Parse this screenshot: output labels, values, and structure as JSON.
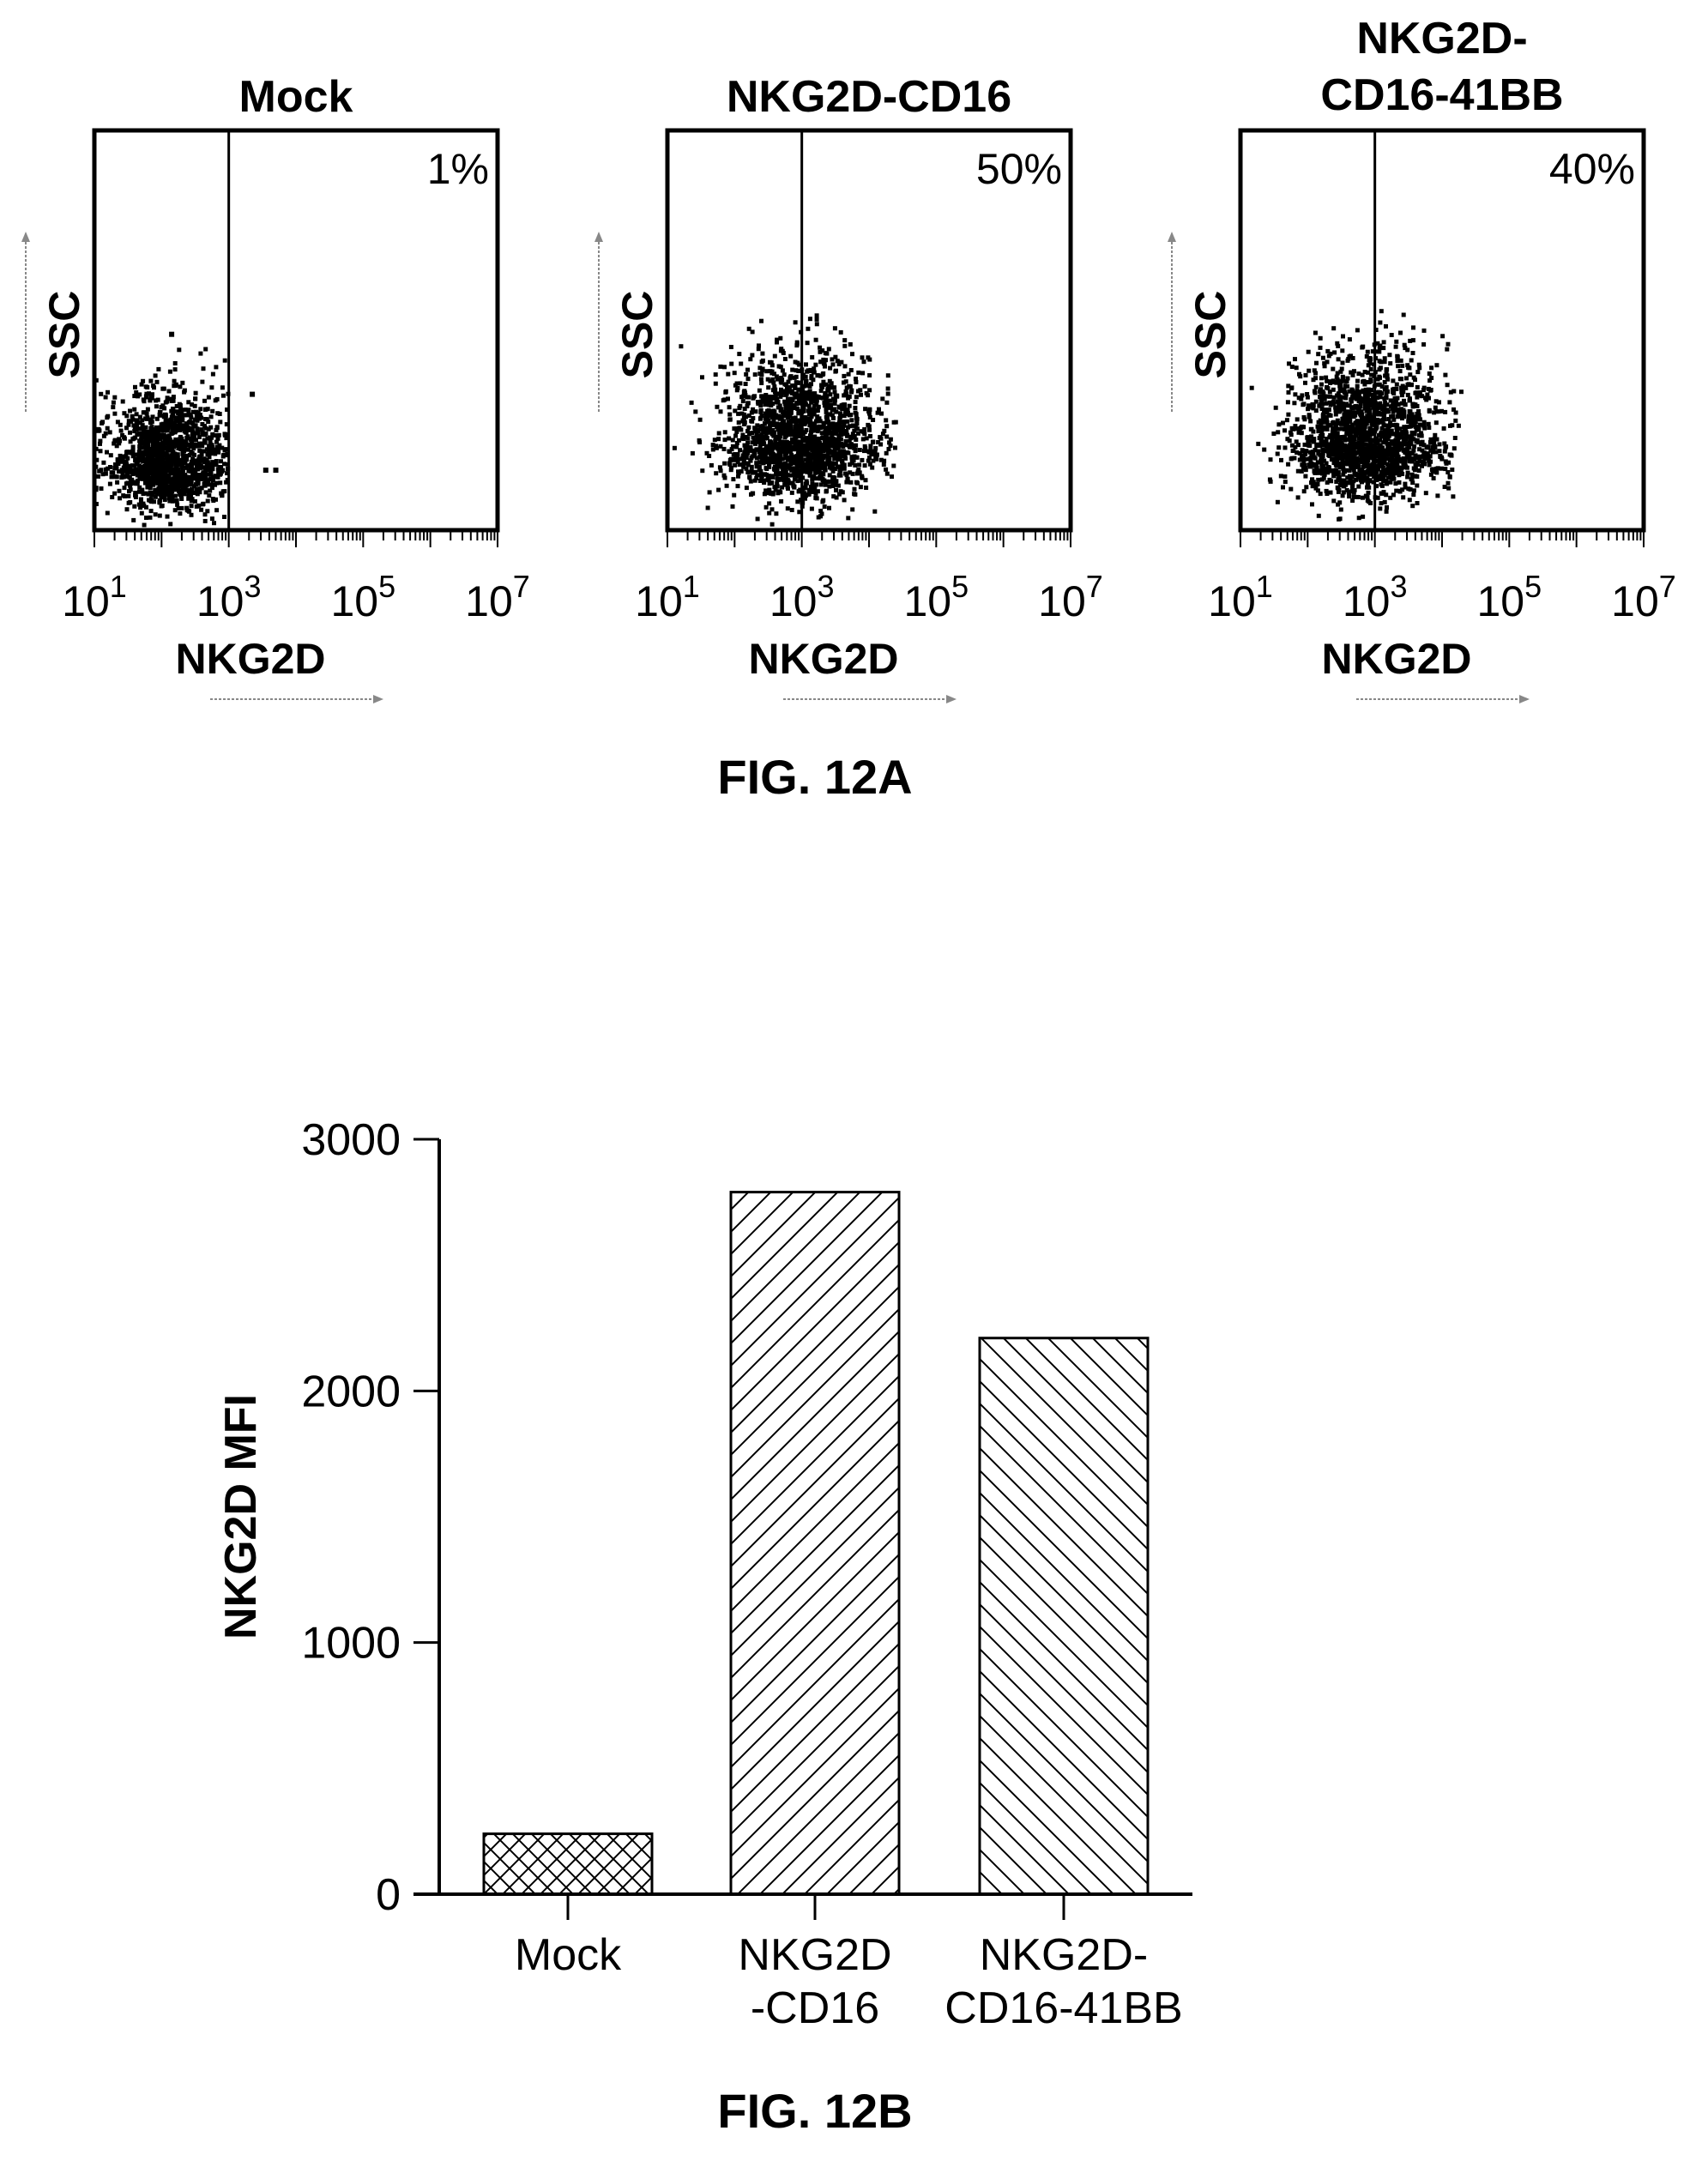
{
  "figure_a_label": "FIG. 12A",
  "figure_b_label": "FIG. 12B",
  "chart_data": [
    {
      "type": "scatter",
      "title": "Mock",
      "xlabel": "NKG2D",
      "ylabel": "SSC",
      "xscale": "log",
      "xlim": [
        10,
        10000000
      ],
      "x_ticks": [
        {
          "base": "10",
          "exp": "1"
        },
        {
          "base": "10",
          "exp": "3"
        },
        {
          "base": "10",
          "exp": "5"
        },
        {
          "base": "10",
          "exp": "7"
        }
      ],
      "gate_x": 1000,
      "gate_percent": "1%",
      "population": {
        "center_log_x": 2.1,
        "spread_log_x": 0.45,
        "center_y": 0.17,
        "spread_y": 0.09,
        "max_log_x": 3.0,
        "max_y": 0.52,
        "count": 1400
      },
      "outliers": [
        [
          3.35,
          0.34
        ],
        [
          3.55,
          0.15
        ],
        [
          3.7,
          0.15
        ],
        [
          2.15,
          0.49
        ]
      ],
      "grid": false,
      "legend": "none"
    },
    {
      "type": "scatter",
      "title": "NKG2D-CD16",
      "xlabel": "NKG2D",
      "ylabel": "SSC",
      "xscale": "log",
      "xlim": [
        10,
        10000000
      ],
      "x_ticks": [
        {
          "base": "10",
          "exp": "1"
        },
        {
          "base": "10",
          "exp": "3"
        },
        {
          "base": "10",
          "exp": "5"
        },
        {
          "base": "10",
          "exp": "7"
        }
      ],
      "gate_x": 1000,
      "gate_percent": "50%",
      "population": {
        "center_log_x": 3.0,
        "spread_log_x": 0.55,
        "center_y": 0.22,
        "spread_y": 0.11,
        "max_log_x": 4.4,
        "max_y": 0.55,
        "count": 1800
      },
      "outliers": [],
      "grid": false,
      "legend": "none"
    },
    {
      "type": "scatter",
      "title": "NKG2D-CD16-41BB",
      "xlabel": "NKG2D",
      "ylabel": "SSC",
      "xscale": "log",
      "xlim": [
        10,
        10000000
      ],
      "x_ticks": [
        {
          "base": "10",
          "exp": "1"
        },
        {
          "base": "10",
          "exp": "3"
        },
        {
          "base": "10",
          "exp": "5"
        },
        {
          "base": "10",
          "exp": "7"
        }
      ],
      "gate_x": 1000,
      "gate_percent": "40%",
      "population": {
        "center_log_x": 2.9,
        "spread_log_x": 0.55,
        "center_y": 0.22,
        "spread_y": 0.11,
        "max_log_x": 4.3,
        "max_y": 0.55,
        "count": 1800
      },
      "outliers": [],
      "grid": false,
      "legend": "none"
    },
    {
      "type": "bar",
      "categories": [
        "Mock",
        "NKG2D\n-CD16",
        "NKG2D-\nCD16-41BB"
      ],
      "values": [
        240,
        2790,
        2210
      ],
      "patterns": [
        "crosshatch",
        "diagonal-up",
        "diagonal-down"
      ],
      "title": "",
      "xlabel": "",
      "ylabel": "NKG2D MFI",
      "ylim": [
        0,
        3000
      ],
      "y_ticks": [
        "0",
        "1000",
        "2000",
        "3000"
      ],
      "grid": false,
      "legend": "none"
    }
  ]
}
